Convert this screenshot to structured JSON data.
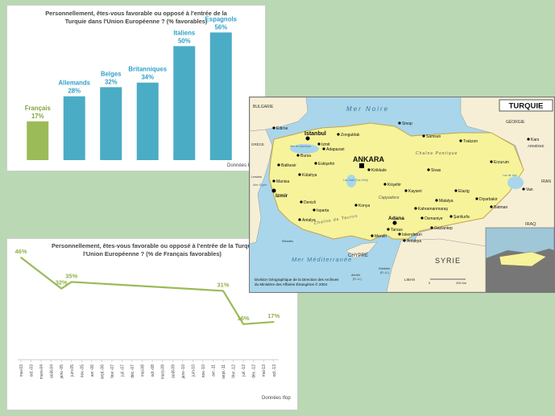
{
  "chart_data": [
    {
      "type": "bar",
      "title": "Personnellement, êtes-vous favorable ou opposé à l'entrée de la Turquie dans l'Union Européenne ? (% favorables)",
      "categories": [
        "Français",
        "Allemands",
        "Belges",
        "Britanniques",
        "Italiens",
        "Espagnols"
      ],
      "values": [
        17,
        28,
        32,
        34,
        50,
        56
      ],
      "value_labels": [
        "17%",
        "28%",
        "32%",
        "34%",
        "50%",
        "56%"
      ],
      "ylim": [
        0,
        60
      ],
      "grid": false,
      "legend": "none"
    },
    {
      "type": "line",
      "title": "Personnellement, êtes-vous favorable ou opposé à l'entrée de la Turqui... l'Union Européenne ? (% de Français favorables)",
      "x": [
        "mai-03",
        "oct.-03",
        "mars-04",
        "août-04",
        "janv.-05",
        "juin-05",
        "nov.-05",
        "avr.-06",
        "sept.-06",
        "févr.-07",
        "juil.-07",
        "déc.-07",
        "mai-08",
        "oct.-08",
        "mars-09",
        "août-09",
        "janv.-10",
        "juin-10",
        "nov.-10",
        "avr.-11",
        "sept.-11",
        "févr.-12",
        "juil.-12",
        "déc.-12",
        "mai-13",
        "oct.-13"
      ],
      "points": [
        {
          "x": "mai-03",
          "y": 46,
          "label": "46%"
        },
        {
          "x": "janv.-05",
          "y": 32,
          "label": "32%"
        },
        {
          "x": "juin-05",
          "y": 35,
          "label": "35%"
        },
        {
          "x": "sept.-11",
          "y": 31,
          "label": "31%"
        },
        {
          "x": "juil.-12",
          "y": 16,
          "label": "16%"
        },
        {
          "x": "oct.-13",
          "y": 17,
          "label": "17%"
        }
      ],
      "ylim": [
        0,
        50
      ],
      "grid": false,
      "legend": "none"
    }
  ],
  "bar_chart": {
    "title_line1": "Personnellement, êtes-vous favorable ou opposé à l'entrée de la",
    "title_line2": "Turquie dans l'Union Européenne ? (% favorables)",
    "source": "Données I"
  },
  "line_chart": {
    "title_line1": "Personnellement, êtes-vous favorable ou opposé à l'entrée de la Turqui",
    "title_line2": "l'Union Européenne ? (% de Français favorables)",
    "source": "Données Ifop"
  },
  "map": {
    "title": "TURQUIE",
    "seas": [
      "Mer Noire",
      "Mer Méditerranée",
      "Mer de Marmara",
      "Mer Égée"
    ],
    "countries": [
      "BULGARIE",
      "GÉORGIE",
      "GRÈCE",
      "ARMÉNIE",
      "IRAN",
      "IRAQ",
      "SYRIE",
      "CHYPRE",
      "LIBAN"
    ],
    "regions": [
      "Chaîne Pontique",
      "Cappadoce",
      "Chaîne du Taurus"
    ],
    "lakes": [
      "Lac Salé (Tuz Gölü)",
      "Lac de Van"
    ],
    "islands": [
      "Lesbos",
      "Rhodes"
    ],
    "capital": "ANKARA",
    "major_cities": [
      "Istanbul",
      "Izmir",
      "Adana"
    ],
    "cities": [
      "Edirne",
      "Izmit",
      "Adapazari",
      "Zonguldak",
      "Sinop",
      "Samsun",
      "Trabzon",
      "Kars",
      "Bursa",
      "Eskişehir",
      "Balikesir",
      "Kütahya",
      "Kirikkale",
      "Sivas",
      "Erzurum",
      "Kirşehir",
      "Van",
      "Manisa",
      "Kayseri",
      "Denizli",
      "Konya",
      "Malatya",
      "Elazig",
      "Diyarbakir",
      "Batman",
      "Isparta",
      "Kahramanmaraş",
      "Antalya",
      "Tarsus",
      "Osmaniye",
      "Şanliurfa",
      "Gaziantep",
      "Mersin",
      "Iskenderun",
      "Antakya"
    ],
    "dhekelia": "Dhekelia",
    "dhekelia_sub": "(R.-U.)",
    "akrotiri": "Akrotiri",
    "akrotiri_sub": "(R.-U.)",
    "credit_line1": "Division Géographique de la Direction des Archives",
    "credit_line2": "du Ministère des Affaires Étrangères © 2004",
    "scale_zero": "0",
    "scale_label": "200 km"
  }
}
